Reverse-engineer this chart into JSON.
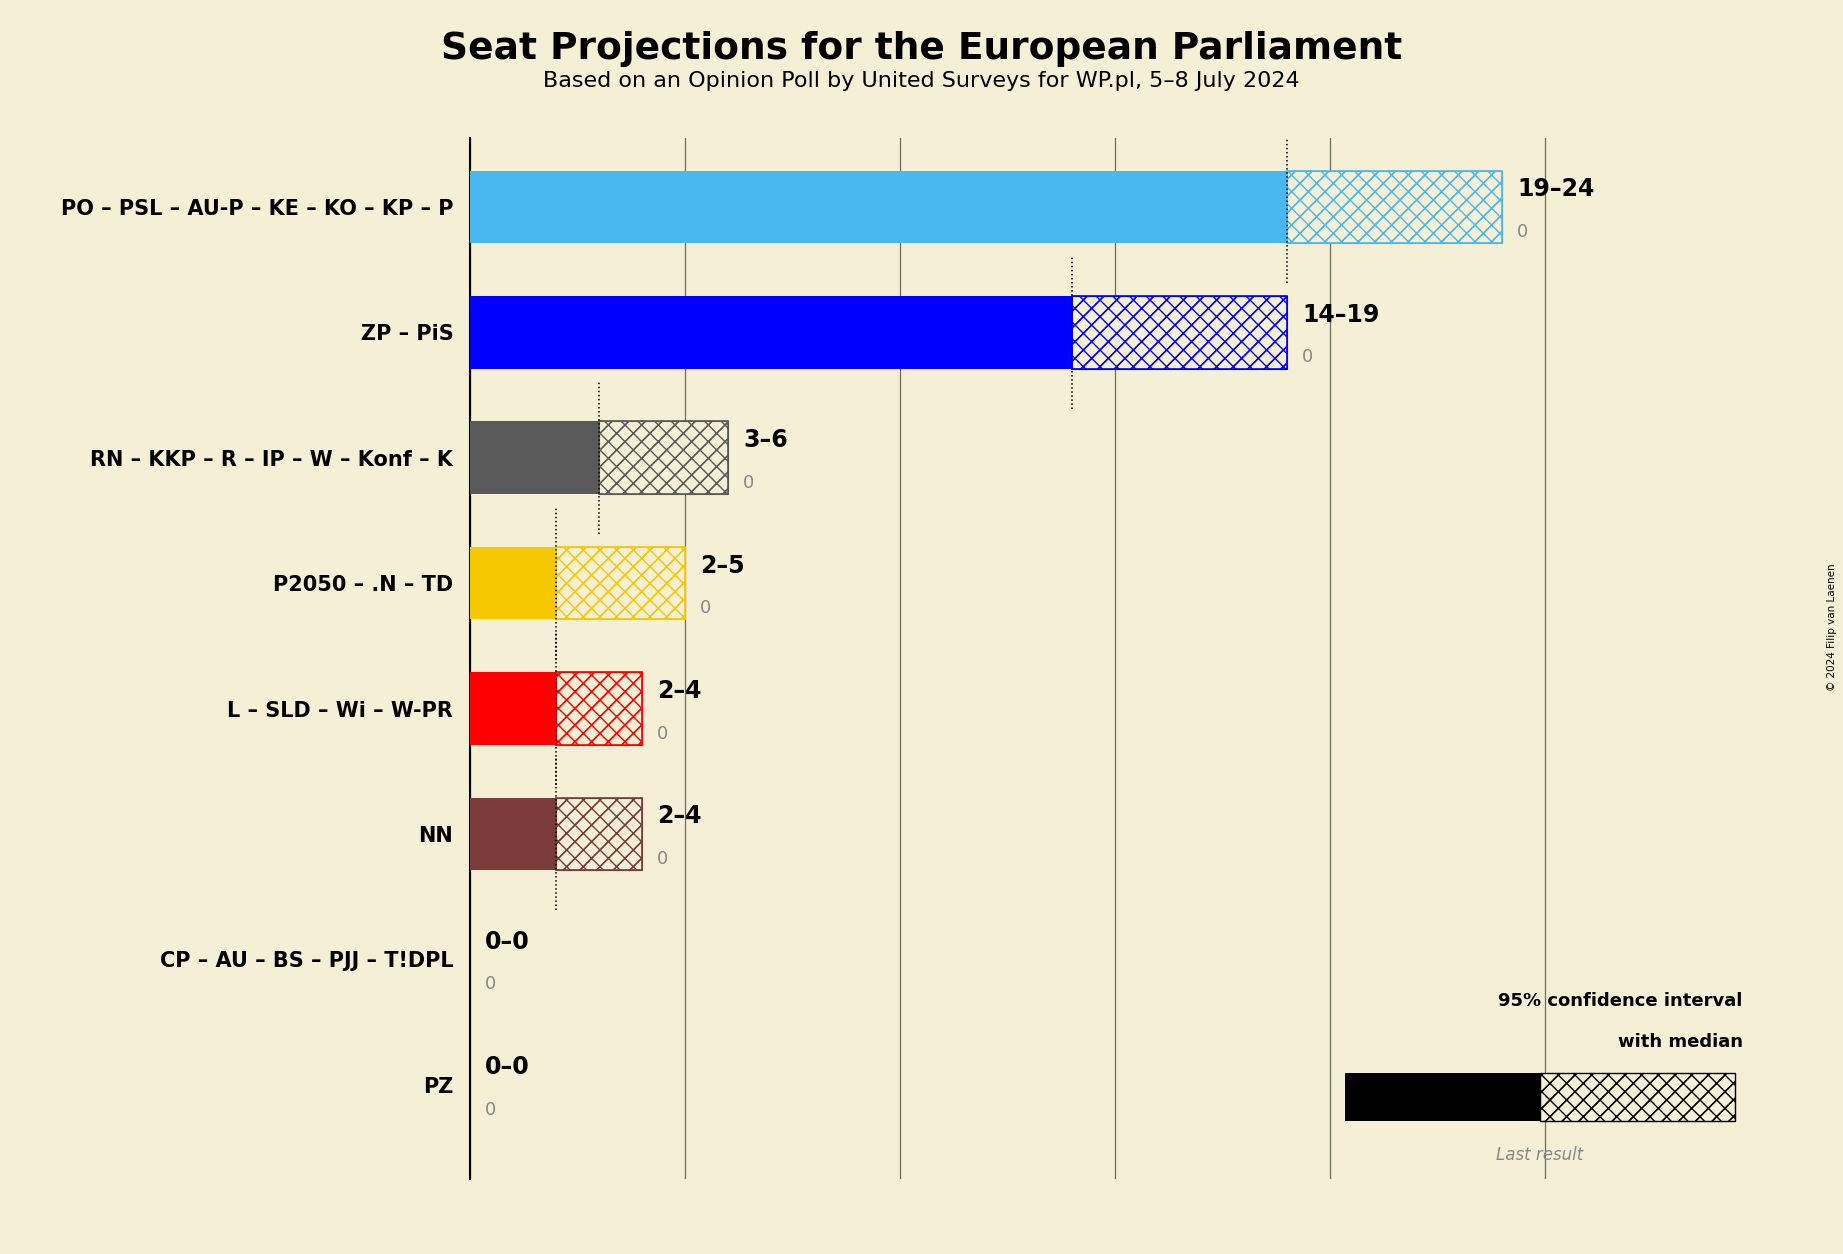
{
  "title": "Seat Projections for the European Parliament",
  "subtitle": "Based on an Opinion Poll by United Surveys for WP.pl, 5–8 July 2024",
  "background_color": "#f5f0d5",
  "parties": [
    {
      "label": "PO – PSL – AU-P – KE – KO – KP – P",
      "low": 19,
      "high": 24,
      "color": "#4ab8f0",
      "range_label": "19–24",
      "last_label": "0"
    },
    {
      "label": "ZP – PiS",
      "low": 14,
      "high": 19,
      "color": "#0000ff",
      "range_label": "14–19",
      "last_label": "0"
    },
    {
      "label": "RN – KKP – R – IP – W – Konf – K",
      "low": 3,
      "high": 6,
      "color": "#595959",
      "range_label": "3–6",
      "last_label": "0"
    },
    {
      "label": "P2050 – .N – TD",
      "low": 2,
      "high": 5,
      "color": "#f5c800",
      "range_label": "2–5",
      "last_label": "0"
    },
    {
      "label": "L – SLD – Wi – W-PR",
      "low": 2,
      "high": 4,
      "color": "#ff0000",
      "range_label": "2–4",
      "last_label": "0"
    },
    {
      "label": "NN",
      "low": 2,
      "high": 4,
      "color": "#7a3b3b",
      "range_label": "2–4",
      "last_label": "0"
    },
    {
      "label": "CP – AU – BS – PJJ – T!DPL",
      "low": 0,
      "high": 0,
      "color": "#888888",
      "range_label": "0–0",
      "last_label": "0"
    },
    {
      "label": "PZ",
      "low": 0,
      "high": 0,
      "color": "#888888",
      "range_label": "0–0",
      "last_label": "0"
    }
  ],
  "xmax": 27,
  "gridlines": [
    0,
    5,
    10,
    15,
    20,
    25
  ],
  "copyright": "© 2024 Filip van Laenen",
  "legend_text1": "95% confidence interval",
  "legend_text2": "with median",
  "legend_last": "Last result"
}
